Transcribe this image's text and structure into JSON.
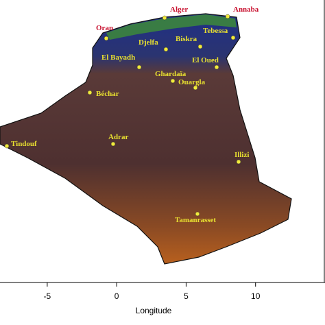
{
  "map": {
    "cities": [
      {
        "name": "Oran",
        "color": "#c8102e"
      },
      {
        "name": "Alger",
        "color": "#c8102e"
      },
      {
        "name": "Annaba",
        "color": "#c8102e"
      },
      {
        "name": "Tebessa",
        "color": "#e8e030"
      },
      {
        "name": "Biskra",
        "color": "#e8e030"
      },
      {
        "name": "Djelfa",
        "color": "#e8e030"
      },
      {
        "name": "El Bayadh",
        "color": "#e8e030"
      },
      {
        "name": "El Oued",
        "color": "#e8e030"
      },
      {
        "name": "Ghardaïa",
        "color": "#e8e030"
      },
      {
        "name": "Ouargla",
        "color": "#e8e030"
      },
      {
        "name": "Béchar",
        "color": "#e8e030"
      },
      {
        "name": "Tindouf",
        "color": "#e8e030"
      },
      {
        "name": "Adrar",
        "color": "#e8e030"
      },
      {
        "name": "Illizi",
        "color": "#e8e030"
      },
      {
        "name": "Tamanrasset",
        "color": "#e8e030"
      }
    ],
    "x_axis": {
      "label": "Longitude",
      "ticks": [
        -5,
        0,
        5,
        10
      ],
      "lim": [
        -8.4,
        15
      ]
    }
  }
}
